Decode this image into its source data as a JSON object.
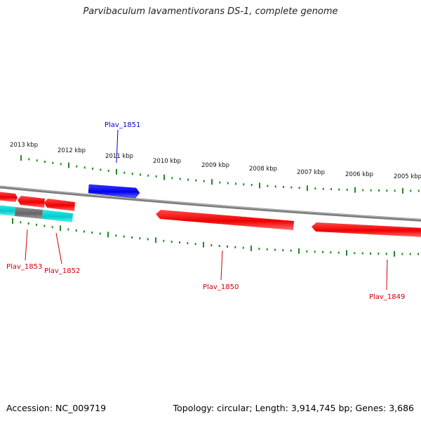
{
  "title": "Parvibaculum lavamentivorans DS-1, complete genome",
  "footer": {
    "accession": "Accession: NC_009719",
    "topology": "Topology: circular; Length: 3,914,745 bp; Genes: 3,686"
  },
  "colors": {
    "forward_gene": "#0000ee",
    "reverse_gene": "#ee0000",
    "tick": "#228822",
    "backbone": "#808080",
    "other_feature_cyan": "#00cccc",
    "other_feature_grey": "#777777"
  },
  "scale_labels": [
    "2013 kbp",
    "2012 kbp",
    "2011 kbp",
    "2010 kbp",
    "2009 kbp",
    "2008 kbp",
    "2007 kbp",
    "2006 kbp",
    "2005 kbp"
  ],
  "genes": [
    {
      "id": "Plav_1851",
      "strand": "forward"
    },
    {
      "id": "Plav_1853",
      "strand": "reverse"
    },
    {
      "id": "Plav_1852",
      "strand": "reverse"
    },
    {
      "id": "Plav_1850",
      "strand": "reverse"
    },
    {
      "id": "Plav_1849",
      "strand": "reverse"
    }
  ]
}
